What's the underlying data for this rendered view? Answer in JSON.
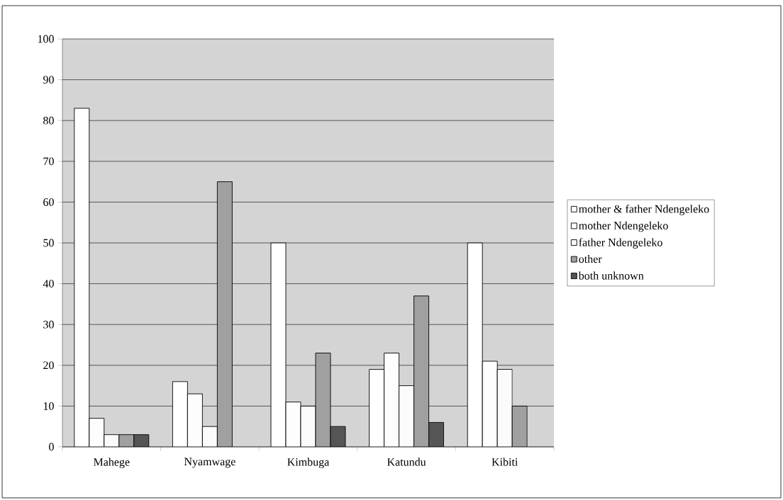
{
  "chart_data": {
    "type": "bar",
    "categories": [
      "Mahege",
      "Nyamwage",
      "Kimbuga",
      "Katundu",
      "Kibiti"
    ],
    "series": [
      {
        "name": "mother & father Ndengeleko",
        "color": "#ffffff",
        "values": [
          83,
          16,
          50,
          19,
          50
        ]
      },
      {
        "name": "mother Ndengeleko",
        "color": "#fdfdfd",
        "values": [
          7,
          13,
          11,
          23,
          21
        ]
      },
      {
        "name": "father Ndengeleko",
        "color": "#fbfbfb",
        "values": [
          3,
          5,
          10,
          15,
          19
        ]
      },
      {
        "name": "other",
        "color": "#a0a0a0",
        "values": [
          3,
          65,
          23,
          37,
          10
        ]
      },
      {
        "name": "both unknown",
        "color": "#555555",
        "values": [
          3,
          null,
          5,
          6,
          null
        ]
      }
    ],
    "ylim": [
      0,
      100
    ],
    "yticks": [
      0,
      10,
      20,
      30,
      40,
      50,
      60,
      70,
      80,
      90,
      100
    ],
    "grid": "y",
    "legend": "right"
  }
}
